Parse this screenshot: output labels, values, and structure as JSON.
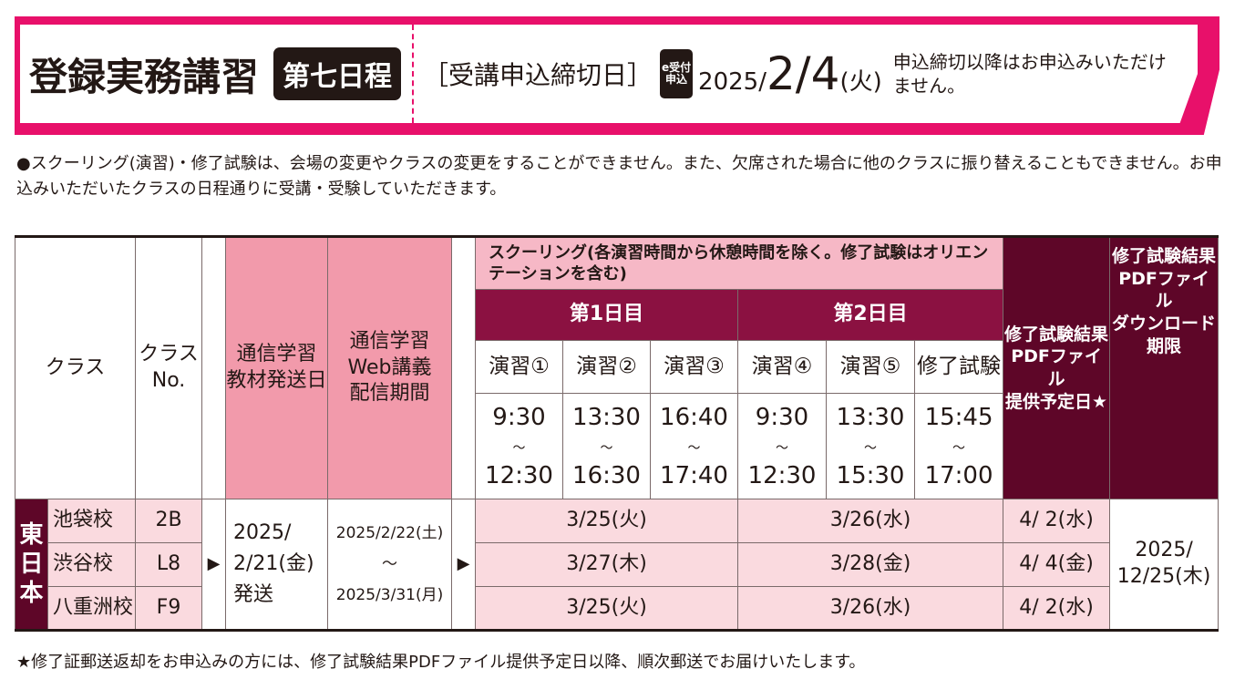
{
  "banner": {
    "title": "登録実務講習",
    "badge": "第七日程",
    "deadline_label": "［受講申込締切日］",
    "e_icon": [
      "e受付",
      "申込"
    ],
    "deadline_year": "2025/",
    "deadline_date": "2/4",
    "deadline_weekday": "(火)",
    "notice": "申込締切以降はお申込みいただけません。",
    "accent": "#e8106a"
  },
  "note_top": "●スクーリング(演習)・修了試験は、会場の変更やクラスの変更をすることができません。また、欠席された場合に他のクラスに振り替えることもできません。お申込みいただいたクラスの日程通りに受講・受験していただきます。",
  "table": {
    "headers": {
      "class": "クラス",
      "class_no": [
        "クラス",
        "No."
      ],
      "material": [
        "通信学習",
        "教材発送日"
      ],
      "web": [
        "通信学習",
        "Web講義",
        "配信期間"
      ],
      "schooling": "スクーリング(各演習時間から休憩時間を除く。修了試験はオリエンテーションを含む)",
      "day1": "第1日目",
      "day2": "第2日目",
      "sessions": [
        {
          "label": "演習①",
          "start": "9:30",
          "end": "12:30"
        },
        {
          "label": "演習②",
          "start": "13:30",
          "end": "16:30"
        },
        {
          "label": "演習③",
          "start": "16:40",
          "end": "17:40"
        },
        {
          "label": "演習④",
          "start": "9:30",
          "end": "12:30"
        },
        {
          "label": "演習⑤",
          "start": "13:30",
          "end": "15:30"
        },
        {
          "label": "修了試験",
          "start": "15:45",
          "end": "17:00"
        }
      ],
      "tilde": "〜",
      "pdf": [
        "修了試験結果",
        "PDFファイル",
        "提供予定日★"
      ],
      "download": [
        "修了試験結果",
        "PDFファイル",
        "ダウンロード",
        "期限"
      ]
    },
    "region": [
      "東",
      "日",
      "本"
    ],
    "rows": [
      {
        "name": "池袋校",
        "no": "2B",
        "day1": "3/25(火)",
        "day2": "3/26(水)",
        "pdf": "4/ 2(水)"
      },
      {
        "name": "渋谷校",
        "no": "L8",
        "day1": "3/27(木)",
        "day2": "3/28(金)",
        "pdf": "4/ 4(金)"
      },
      {
        "name": "八重洲校",
        "no": "F9",
        "day1": "3/25(火)",
        "day2": "3/26(水)",
        "pdf": "4/ 2(水)"
      }
    ],
    "material_date": [
      "2025/",
      "2/21(金)",
      "発送"
    ],
    "web_period": [
      "2025/2/22(土)",
      "〜",
      "2025/3/31(月)"
    ],
    "download_date": [
      "2025/",
      "12/25(木)"
    ]
  },
  "note_bottom": "★修了証郵送返却をお申込みの方には、修了試験結果PDFファイル提供予定日以降、順次郵送でお届けいたします。"
}
